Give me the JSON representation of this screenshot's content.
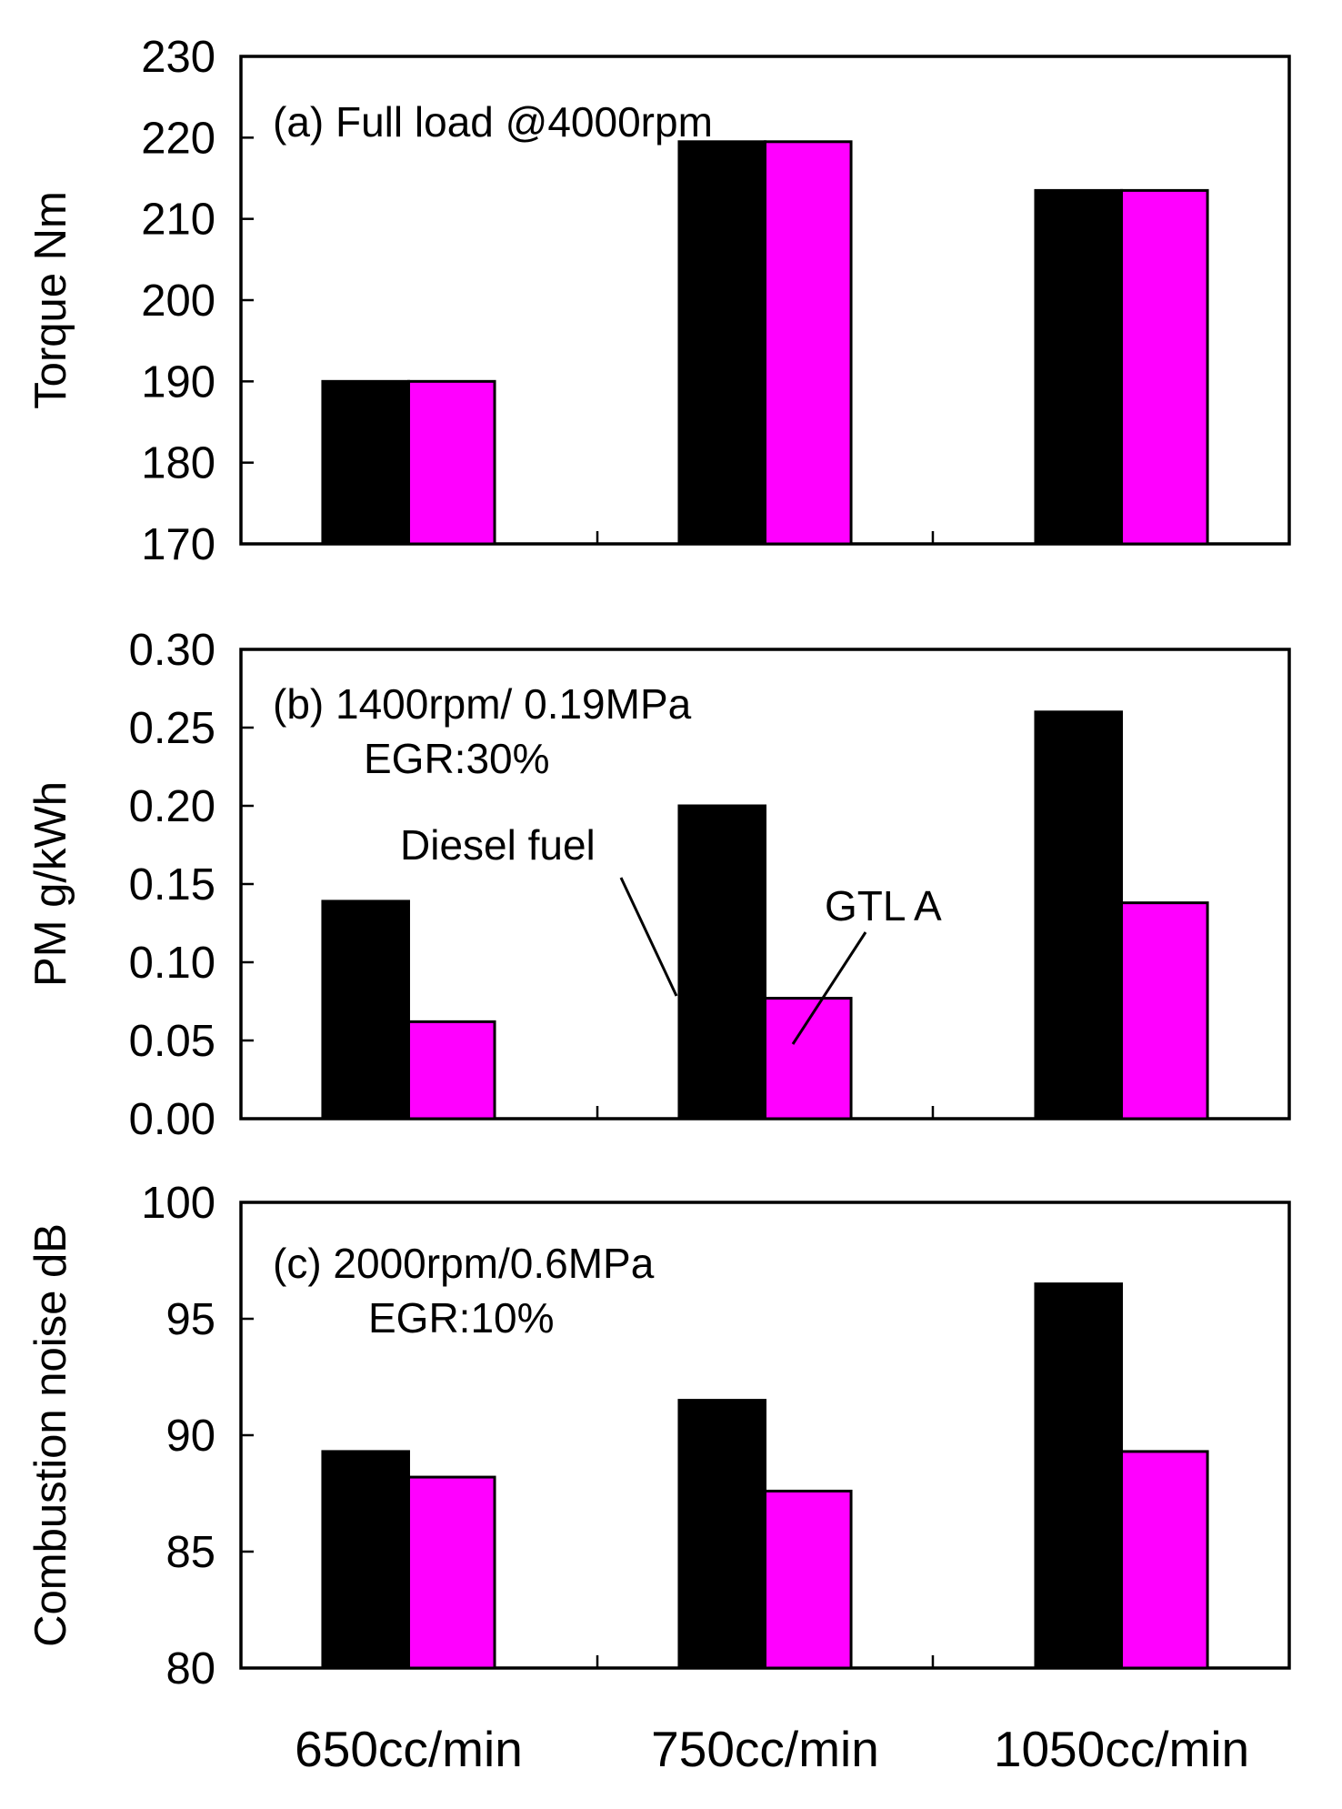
{
  "chart_data": [
    {
      "type": "bar",
      "panel": "a",
      "annotation_lines": [
        "(a) Full load @4000rpm"
      ],
      "ylabel": "Torque  Nm",
      "ylim": [
        170,
        230
      ],
      "yticks": [
        170,
        180,
        190,
        200,
        210,
        220,
        230
      ],
      "tick_decimals": 0,
      "categories": [
        "650cc/min",
        "750cc/min",
        "1050cc/min"
      ],
      "series": [
        {
          "name": "Diesel fuel",
          "color": "#000000",
          "values": [
            190,
            219.5,
            213.5
          ]
        },
        {
          "name": "GTL A",
          "color": "#ff00ff",
          "values": [
            190,
            219.5,
            213.5
          ]
        }
      ]
    },
    {
      "type": "bar",
      "panel": "b",
      "annotation_lines": [
        "(b) 1400rpm/ 0.19MPa",
        "EGR:30%"
      ],
      "ylabel": "PM  g/kWh",
      "ylim": [
        0,
        0.3
      ],
      "yticks": [
        0,
        0.05,
        0.1,
        0.15,
        0.2,
        0.25,
        0.3
      ],
      "tick_decimals": 2,
      "categories": [
        "650cc/min",
        "750cc/min",
        "1050cc/min"
      ],
      "series": [
        {
          "name": "Diesel fuel",
          "color": "#000000",
          "values": [
            0.139,
            0.2,
            0.26
          ]
        },
        {
          "name": "GTL A",
          "color": "#ff00ff",
          "values": [
            0.062,
            0.077,
            0.138
          ]
        }
      ],
      "legend_labels": [
        "Diesel fuel",
        "GTL A"
      ]
    },
    {
      "type": "bar",
      "panel": "c",
      "annotation_lines": [
        "(c) 2000rpm/0.6MPa",
        "EGR:10%"
      ],
      "ylabel": "Combustion noise   dB",
      "ylim": [
        80,
        100
      ],
      "yticks": [
        80,
        85,
        90,
        95,
        100
      ],
      "tick_decimals": 0,
      "categories": [
        "650cc/min",
        "750cc/min",
        "1050cc/min"
      ],
      "series": [
        {
          "name": "Diesel fuel",
          "color": "#000000",
          "values": [
            89.3,
            91.5,
            96.5
          ]
        },
        {
          "name": "GTL A",
          "color": "#ff00ff",
          "values": [
            88.2,
            87.6,
            89.3
          ]
        }
      ]
    }
  ]
}
